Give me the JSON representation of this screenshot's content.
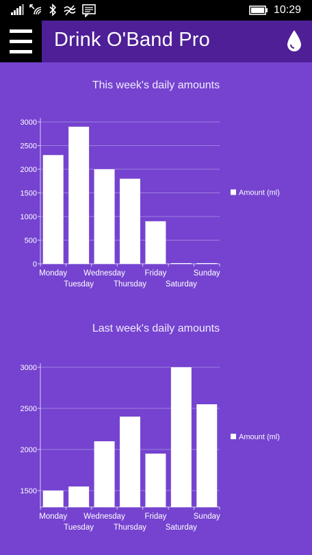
{
  "status_bar": {
    "time": "10:29",
    "icons": [
      "signal-icon",
      "wifi-icon",
      "bluetooth-icon",
      "nfc-icon",
      "message-icon",
      "battery-icon"
    ]
  },
  "header": {
    "title": "Drink O'Band Pro",
    "menu_icon": "hamburger-menu-icon",
    "action_icon": "water-drop-icon",
    "colors": {
      "background": "#4e1f97",
      "menu_background": "#000000",
      "page_background": "#7543cf"
    }
  },
  "chart_data": [
    {
      "type": "bar",
      "title": "This week's daily amounts",
      "categories": [
        "Monday",
        "Tuesday",
        "Wednesday",
        "Thursday",
        "Friday",
        "Saturday",
        "Sunday"
      ],
      "series": [
        {
          "name": "Amount (ml)",
          "values": [
            2300,
            2900,
            2000,
            1800,
            900,
            0,
            0
          ]
        }
      ],
      "ylim": [
        0,
        3000
      ],
      "yticks": [
        "0",
        "500",
        "1000",
        "1500",
        "2000",
        "2500",
        "3000"
      ],
      "ytick_values": [
        0,
        500,
        1000,
        1500,
        2000,
        2500,
        3000
      ],
      "legend_position": "right",
      "grid": true,
      "bar_color": "#ffffff"
    },
    {
      "type": "bar",
      "title": "Last week's daily amounts",
      "categories": [
        "Monday",
        "Tuesday",
        "Wednesday",
        "Thursday",
        "Friday",
        "Saturday",
        "Sunday"
      ],
      "series": [
        {
          "name": "Amount (ml)",
          "values": [
            1500,
            1550,
            2100,
            2400,
            1950,
            3000,
            2550
          ]
        }
      ],
      "ylim": [
        1300,
        3000
      ],
      "yticks": [
        "1500",
        "2000",
        "2500",
        "3000"
      ],
      "ytick_values": [
        1500,
        2000,
        2500,
        3000
      ],
      "legend_position": "right",
      "grid": true,
      "bar_color": "#ffffff"
    }
  ]
}
